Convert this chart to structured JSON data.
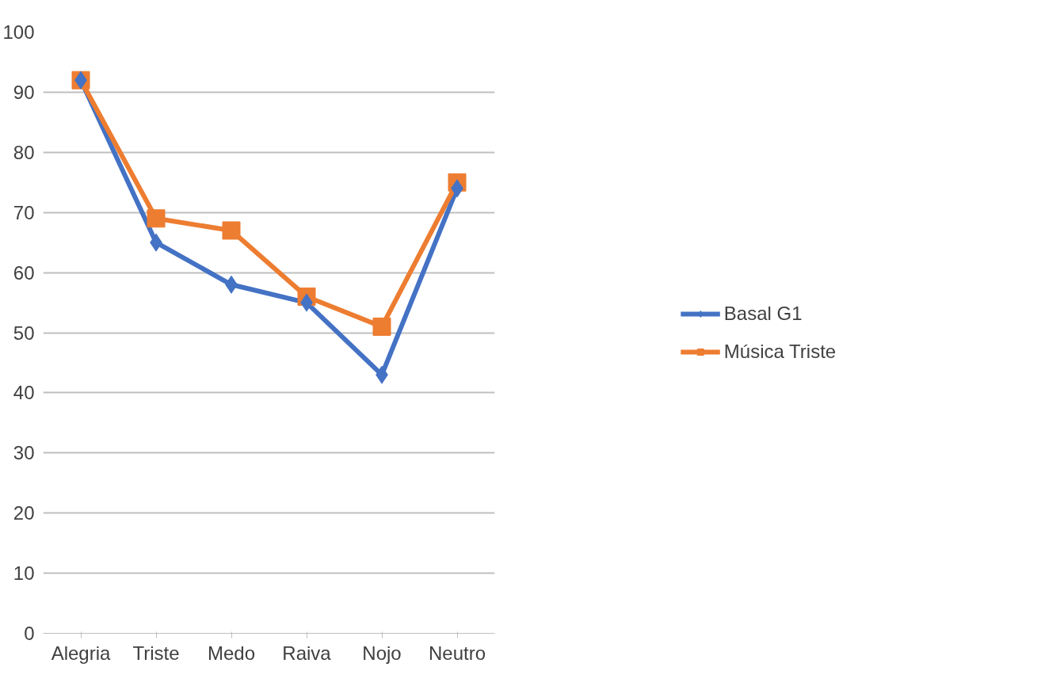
{
  "chart_data": {
    "type": "line",
    "categories": [
      "Alegria",
      "Triste",
      "Medo",
      "Raiva",
      "Nojo",
      "Neutro"
    ],
    "series": [
      {
        "name": "Basal G1",
        "color": "#4472c4",
        "marker": "diamond",
        "values": [
          92,
          65,
          58,
          55,
          43,
          74
        ]
      },
      {
        "name": "Música Triste",
        "color": "#ed7d31",
        "marker": "square",
        "values": [
          92,
          69,
          67,
          56,
          51,
          75
        ]
      }
    ],
    "ylim": [
      0,
      100
    ],
    "yticks": [
      0,
      10,
      20,
      30,
      40,
      50,
      60,
      70,
      80,
      90,
      100
    ],
    "grid": "y",
    "legend": "right",
    "line_style": "solid"
  }
}
